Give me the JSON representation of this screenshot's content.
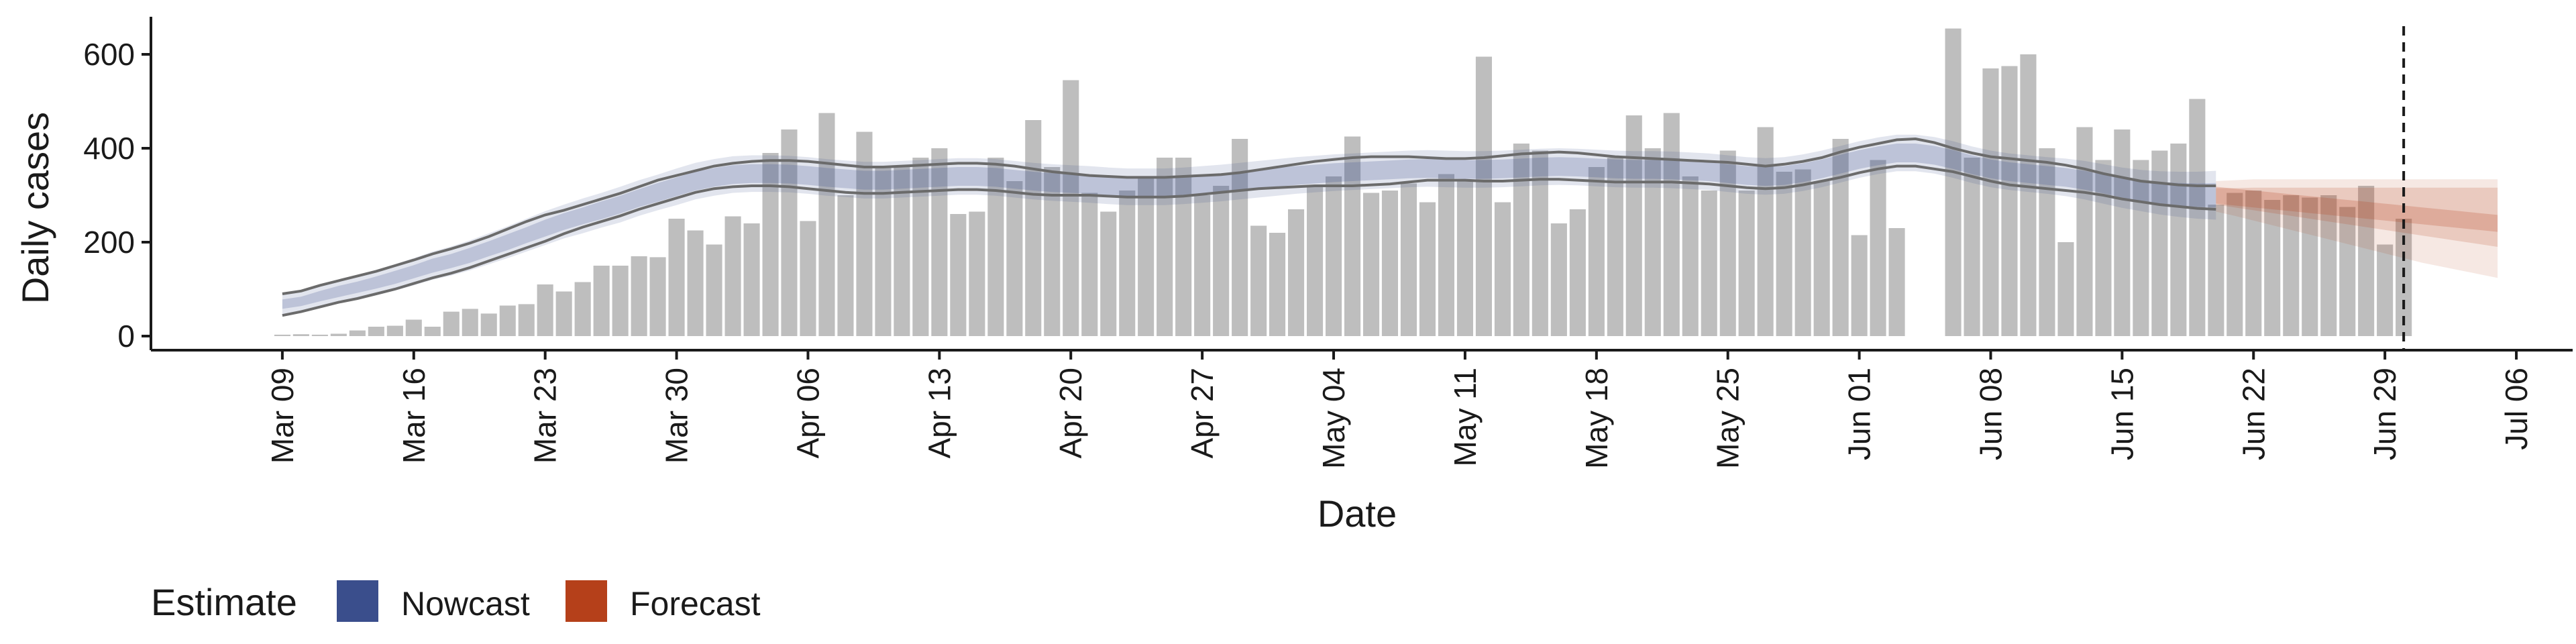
{
  "chart_data": {
    "type": "bar",
    "xlabel": "Date",
    "ylabel": "Daily cases",
    "ylim": [
      -30,
      680
    ],
    "xlim": [
      "2020-03-02",
      "2020-07-09"
    ],
    "grid": false,
    "y_ticks": [
      0,
      200,
      400,
      600
    ],
    "x_ticks": [
      "2020-03-09",
      "2020-03-16",
      "2020-03-23",
      "2020-03-30",
      "2020-04-06",
      "2020-04-13",
      "2020-04-20",
      "2020-04-27",
      "2020-05-04",
      "2020-05-11",
      "2020-05-18",
      "2020-05-25",
      "2020-06-01",
      "2020-06-08",
      "2020-06-15",
      "2020-06-22",
      "2020-06-29",
      "2020-07-06"
    ],
    "x_tick_labels": [
      "Mar 09",
      "Mar 16",
      "Mar 23",
      "Mar 30",
      "Apr 06",
      "Apr 13",
      "Apr 20",
      "Apr 27",
      "May 04",
      "May 11",
      "May 18",
      "May 25",
      "Jun 01",
      "Jun 08",
      "Jun 15",
      "Jun 22",
      "Jun 29",
      "Jul 06"
    ],
    "bars": {
      "start_date": "2020-03-09",
      "color": "#bebebe",
      "values": [
        3,
        4,
        3,
        5,
        12,
        20,
        22,
        35,
        20,
        52,
        58,
        48,
        65,
        68,
        110,
        95,
        115,
        150,
        150,
        170,
        168,
        250,
        225,
        195,
        255,
        240,
        390,
        440,
        245,
        475,
        300,
        435,
        360,
        360,
        380,
        400,
        260,
        265,
        380,
        330,
        460,
        360,
        545,
        305,
        265,
        310,
        340,
        380,
        380,
        300,
        320,
        420,
        235,
        220,
        270,
        320,
        340,
        425,
        305,
        310,
        325,
        285,
        345,
        330,
        595,
        285,
        410,
        395,
        240,
        270,
        360,
        380,
        470,
        400,
        475,
        340,
        310,
        395,
        310,
        445,
        350,
        355,
        330,
        420,
        215,
        375,
        230,
        null,
        null,
        655,
        380,
        570,
        575,
        600,
        400,
        200,
        445,
        375,
        440,
        375,
        395,
        410,
        505,
        280,
        305,
        310,
        290,
        300,
        295,
        300,
        275,
        320,
        195,
        250
      ]
    },
    "nowcast": {
      "name": "Nowcast",
      "color": "#3a4e8c",
      "start_date": "2020-03-09",
      "median": [
        68,
        74,
        85,
        95,
        104,
        114,
        125,
        137,
        150,
        160,
        172,
        186,
        200,
        215,
        230,
        244,
        256,
        268,
        280,
        294,
        306,
        318,
        330,
        338,
        344,
        346,
        346,
        345,
        342,
        338,
        335,
        332,
        332,
        334,
        336,
        338,
        340,
        340,
        338,
        334,
        330,
        327,
        325,
        323,
        320,
        318,
        318,
        318,
        320,
        323,
        326,
        330,
        334,
        338,
        342,
        345,
        348,
        350,
        352,
        354,
        356,
        357,
        356,
        355,
        355,
        356,
        358,
        360,
        361,
        360,
        358,
        356,
        355,
        355,
        354,
        352,
        350,
        346,
        342,
        340,
        342,
        348,
        356,
        366,
        376,
        384,
        390,
        390,
        385,
        376,
        365,
        356,
        350,
        346,
        342,
        338,
        332,
        324,
        316,
        310,
        305,
        302,
        300,
        300
      ],
      "inner_width": [
        10,
        10,
        11,
        12,
        12,
        13,
        14,
        14,
        15,
        15,
        16,
        16,
        17,
        17,
        18,
        18,
        18,
        19,
        19,
        19,
        20,
        20,
        20,
        20,
        20,
        20,
        20,
        20,
        20,
        20,
        20,
        20,
        20,
        20,
        20,
        20,
        20,
        20,
        20,
        20,
        20,
        20,
        20,
        20,
        20,
        20,
        20,
        20,
        20,
        20,
        20,
        20,
        20,
        20,
        20,
        20,
        20,
        20,
        20,
        20,
        20,
        20,
        20,
        20,
        20,
        20,
        20,
        20,
        20,
        20,
        20,
        20,
        20,
        20,
        20,
        20,
        20,
        20,
        20,
        20,
        20,
        20,
        20,
        20,
        20,
        20,
        20,
        20,
        20,
        20,
        20,
        20,
        20,
        20,
        20,
        20,
        20,
        20,
        21,
        22,
        23,
        24,
        25,
        26
      ],
      "outer_width": [
        22,
        23,
        24,
        25,
        26,
        27,
        28,
        29,
        30,
        31,
        32,
        33,
        34,
        35,
        36,
        36,
        37,
        37,
        38,
        38,
        38,
        39,
        39,
        39,
        39,
        39,
        39,
        39,
        39,
        39,
        39,
        39,
        39,
        39,
        39,
        39,
        39,
        39,
        39,
        39,
        39,
        39,
        39,
        39,
        39,
        39,
        39,
        39,
        39,
        39,
        39,
        39,
        39,
        39,
        39,
        39,
        39,
        39,
        39,
        39,
        39,
        39,
        39,
        39,
        39,
        39,
        39,
        39,
        39,
        39,
        39,
        39,
        39,
        39,
        39,
        39,
        39,
        39,
        39,
        39,
        39,
        39,
        39,
        39,
        39,
        39,
        39,
        39,
        39,
        39,
        39,
        39,
        39,
        39,
        39,
        40,
        41,
        42,
        43,
        44,
        46,
        48,
        50,
        52
      ],
      "line_upper": [
        90,
        96,
        108,
        118,
        128,
        138,
        150,
        162,
        175,
        186,
        198,
        212,
        228,
        244,
        258,
        268,
        280,
        292,
        304,
        318,
        332,
        342,
        352,
        362,
        368,
        372,
        374,
        374,
        372,
        368,
        364,
        360,
        360,
        362,
        364,
        366,
        368,
        368,
        366,
        362,
        356,
        350,
        346,
        342,
        340,
        338,
        338,
        338,
        340,
        342,
        344,
        348,
        354,
        360,
        366,
        372,
        376,
        380,
        382,
        382,
        382,
        380,
        378,
        378,
        380,
        384,
        388,
        390,
        392,
        390,
        386,
        382,
        380,
        378,
        376,
        374,
        372,
        370,
        366,
        362,
        366,
        372,
        380,
        392,
        402,
        410,
        418,
        420,
        412,
        400,
        390,
        382,
        378,
        374,
        370,
        364,
        356,
        346,
        338,
        330,
        326,
        322,
        320,
        320
      ],
      "line_lower": [
        44,
        52,
        62,
        72,
        80,
        90,
        100,
        112,
        124,
        134,
        146,
        160,
        174,
        188,
        202,
        218,
        232,
        244,
        256,
        270,
        282,
        294,
        306,
        314,
        318,
        320,
        320,
        318,
        314,
        310,
        306,
        304,
        304,
        306,
        308,
        310,
        312,
        312,
        310,
        306,
        302,
        300,
        300,
        300,
        298,
        296,
        296,
        296,
        298,
        302,
        306,
        310,
        314,
        316,
        318,
        320,
        320,
        320,
        322,
        324,
        328,
        332,
        332,
        332,
        330,
        330,
        332,
        334,
        334,
        332,
        330,
        328,
        328,
        328,
        328,
        326,
        324,
        320,
        316,
        314,
        316,
        322,
        330,
        338,
        348,
        356,
        362,
        362,
        356,
        350,
        340,
        330,
        322,
        318,
        314,
        310,
        306,
        300,
        292,
        286,
        280,
        276,
        272,
        270
      ]
    },
    "forecast": {
      "name": "Forecast",
      "color": "#b5401a",
      "start_date": "2020-06-20",
      "median": [
        300,
        296,
        292,
        288,
        284,
        280,
        276,
        272,
        268,
        264,
        260,
        256,
        252,
        248,
        244,
        240
      ],
      "inner_low": [
        280,
        274,
        268,
        262,
        256,
        250,
        244,
        238,
        232,
        226,
        220,
        214,
        208,
        202,
        196,
        190
      ],
      "inner_high": [
        315,
        315,
        316,
        316,
        316,
        316,
        316,
        316,
        316,
        316,
        316,
        316,
        316,
        316,
        316,
        316
      ],
      "outer_low": [
        265,
        256,
        246,
        236,
        226,
        216,
        206,
        196,
        186,
        176,
        166,
        156,
        148,
        140,
        132,
        124
      ],
      "outer_high": [
        330,
        332,
        334,
        334,
        334,
        334,
        334,
        334,
        334,
        334,
        334,
        334,
        334,
        334,
        334,
        334
      ]
    },
    "reference_line": {
      "date": "2020-06-30",
      "style": "dashed"
    },
    "legend": {
      "placement": "bottom-left",
      "title": "Estimate",
      "items": [
        {
          "label": "Nowcast",
          "color": "#3a4e8c"
        },
        {
          "label": "Forecast",
          "color": "#b5401a"
        }
      ]
    }
  }
}
